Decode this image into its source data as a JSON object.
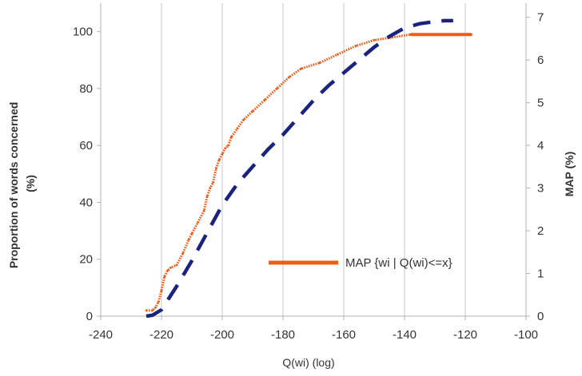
{
  "chart_data": {
    "type": "line",
    "xlabel": "Q(wi) (log)",
    "ylabel_left": "Proportion of words concerned (%)",
    "ylabel_left_lines": [
      "Proportion of words concerned",
      "(%)"
    ],
    "ylabel_right": "MAP (%)",
    "xlim": [
      -240,
      -100
    ],
    "ylim_left": [
      0,
      110
    ],
    "ylim_right": [
      0,
      7.33
    ],
    "x_ticks": [
      -240,
      -220,
      -200,
      -180,
      -160,
      -140,
      -120,
      -100
    ],
    "x_tick_labels": [
      "-240",
      "-220",
      "-200",
      "-180",
      "-160",
      "-140",
      "-120",
      "-100"
    ],
    "y_left_ticks": [
      0,
      20,
      40,
      60,
      80,
      100
    ],
    "y_left_tick_labels": [
      "0",
      "20",
      "40",
      "60",
      "80",
      "100"
    ],
    "y_right_ticks": [
      0,
      1,
      2,
      3,
      4,
      5,
      6,
      7
    ],
    "y_right_tick_labels": [
      "0",
      "1",
      "2",
      "3",
      "4",
      "5",
      "6",
      "7"
    ],
    "grid": "vertical",
    "legend_position": "inside-lower-right",
    "series": [
      {
        "name": "MAP {wi | Q(wi)<=x}",
        "axis": "left",
        "color": "#f25c19",
        "style": "dotted",
        "in_legend": true,
        "x": [
          -225,
          -223,
          -222,
          -221,
          -220,
          -219,
          -218,
          -217,
          -215,
          -213,
          -211,
          -210,
          -208,
          -206,
          -205,
          -204,
          -203,
          -202,
          -201,
          -200,
          -199,
          -198,
          -197,
          -195,
          -193,
          -190,
          -186,
          -182,
          -178,
          -174,
          -168,
          -162,
          -156,
          -150,
          -144,
          -138,
          -130,
          -125,
          -118
        ],
        "values": [
          2,
          2,
          3,
          5,
          9,
          14,
          16,
          17,
          18,
          22,
          27,
          29,
          33,
          37,
          42,
          45,
          47,
          52,
          55,
          57,
          59,
          60,
          63,
          66,
          69,
          72,
          76,
          80,
          84,
          87,
          89,
          92,
          95,
          97,
          98,
          99,
          99,
          99,
          99
        ]
      },
      {
        "name": "",
        "axis": "right",
        "color": "#1a237e",
        "style": "dashed",
        "in_legend": false,
        "x": [
          -225,
          -223,
          -220,
          -215,
          -210,
          -205,
          -200,
          -195,
          -190,
          -185,
          -180,
          -175,
          -170,
          -165,
          -160,
          -155,
          -150,
          -145,
          -140,
          -135,
          -130,
          -127,
          -124
        ],
        "values": [
          0,
          0.02,
          0.15,
          0.7,
          1.3,
          1.95,
          2.6,
          3.1,
          3.5,
          3.9,
          4.25,
          4.65,
          5.05,
          5.4,
          5.7,
          6.0,
          6.3,
          6.55,
          6.75,
          6.85,
          6.9,
          6.92,
          6.92
        ]
      }
    ],
    "legend_line_color": "#f25c19"
  }
}
